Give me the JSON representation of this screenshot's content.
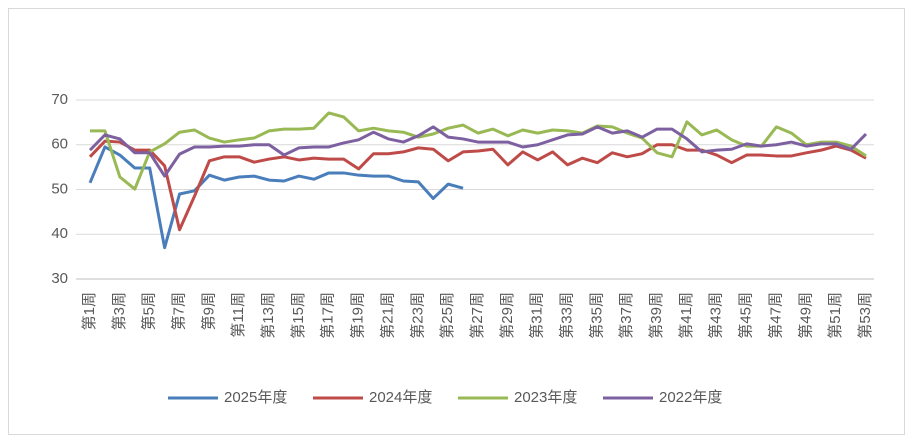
{
  "chart_data": {
    "type": "line",
    "categories": [
      "第1周",
      null,
      "第3周",
      null,
      "第5周",
      null,
      "第7周",
      null,
      "第9周",
      null,
      "第11周",
      null,
      "第13周",
      null,
      "第15周",
      null,
      "第17周",
      null,
      "第19周",
      null,
      "第21周",
      null,
      "第23周",
      null,
      "第25周",
      null,
      "第27周",
      null,
      "第29周",
      null,
      "第31周",
      null,
      "第33周",
      null,
      "第35周",
      null,
      "第37周",
      null,
      "第39周",
      null,
      "第41周",
      null,
      "第43周",
      null,
      "第45周",
      null,
      "第47周",
      null,
      "第49周",
      null,
      "第51周",
      null,
      "第53周"
    ],
    "series": [
      {
        "name": "2025年度",
        "color": "#4a7ebb",
        "values": [
          51.5,
          59.5,
          57.7,
          54.8,
          54.8,
          37,
          49,
          49.7,
          53.2,
          52.1,
          52.8,
          53,
          52.1,
          51.9,
          53,
          52.3,
          53.7,
          53.7,
          53.2,
          53,
          53,
          51.9,
          51.7,
          48,
          51.2,
          50.3,
          null,
          null,
          null,
          null,
          null,
          null,
          null,
          null,
          null,
          null,
          null,
          null,
          null,
          null,
          null,
          null,
          null,
          null,
          null,
          null,
          null,
          null,
          null,
          null,
          null,
          null,
          null
        ]
      },
      {
        "name": "2024年度",
        "color": "#be4b48",
        "values": [
          57.3,
          60.8,
          60.6,
          58.8,
          58.8,
          55.3,
          41,
          48.5,
          56.4,
          57.3,
          57.3,
          56.1,
          56.8,
          57.3,
          56.6,
          57,
          56.8,
          56.8,
          54.6,
          58,
          58,
          58.4,
          59.3,
          59,
          56.4,
          58.4,
          58.6,
          59,
          55.5,
          58.4,
          56.6,
          58.4,
          55.5,
          57,
          56,
          58.2,
          57.3,
          58,
          60,
          60,
          58.8,
          58.8,
          57.7,
          56,
          57.7,
          57.7,
          57.5,
          57.5,
          58.2,
          58.8,
          59.7,
          58.8,
          57
        ]
      },
      {
        "name": "2023年度",
        "color": "#98b954",
        "values": [
          63.1,
          63.1,
          52.8,
          50.1,
          58.4,
          60.2,
          62.8,
          63.3,
          61.5,
          60.6,
          61.1,
          61.5,
          63.1,
          63.5,
          63.5,
          63.7,
          67.1,
          66.2,
          63.1,
          63.7,
          63.1,
          62.8,
          61.7,
          62.4,
          63.7,
          64.4,
          62.6,
          63.5,
          62,
          63.3,
          62.6,
          63.3,
          63.1,
          62.6,
          64.2,
          64,
          62.6,
          61.5,
          58.2,
          57.3,
          65.1,
          62.2,
          63.3,
          61.1,
          59.7,
          59.7,
          64,
          62.6,
          60,
          60.6,
          60.6,
          59.7,
          57.5
        ]
      },
      {
        "name": "2022年度",
        "color": "#7d60a0",
        "values": [
          58.8,
          62.2,
          61.3,
          58.2,
          58.2,
          53,
          57.9,
          59.5,
          59.5,
          59.7,
          59.7,
          60,
          60,
          57.7,
          59.3,
          59.5,
          59.5,
          60.4,
          61.1,
          62.8,
          61.3,
          60.6,
          62,
          64,
          61.7,
          61.3,
          60.6,
          60.6,
          60.6,
          59.5,
          60,
          61.1,
          62.2,
          62.4,
          64,
          62.6,
          63.1,
          61.7,
          63.5,
          63.5,
          61.3,
          58.4,
          58.8,
          59,
          60.2,
          59.7,
          60,
          60.6,
          59.7,
          60.2,
          60.2,
          59,
          62.4
        ]
      }
    ],
    "ylim": [
      30,
      70
    ],
    "yticks": [
      30,
      40,
      50,
      60,
      70
    ],
    "grid": true,
    "legend": "bottom"
  }
}
